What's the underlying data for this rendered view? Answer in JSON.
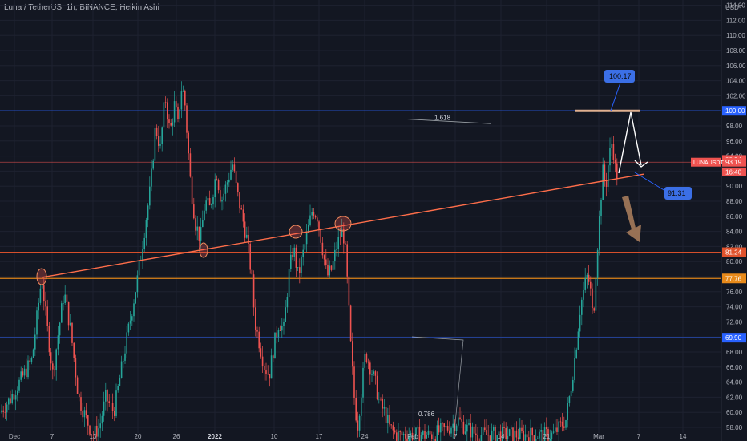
{
  "header": {
    "title": "Luna / TetherUS, 1h, BINANCE, Heikin Ashi",
    "currency": "USDT"
  },
  "chart_data": {
    "type": "candlestick",
    "ylim": [
      57,
      114
    ],
    "y_ticks": [
      58,
      60,
      62,
      64,
      66,
      68,
      70,
      72,
      74,
      76,
      78,
      80,
      82,
      84,
      86,
      88,
      90,
      92,
      94,
      96,
      98,
      100,
      102,
      104,
      106,
      108,
      110,
      112,
      114
    ],
    "x_ticks": [
      "Dec",
      "7",
      "13",
      "20",
      "26",
      "2022",
      "10",
      "17",
      "24",
      "Feb",
      "7",
      "14",
      "21",
      "Mar",
      "7",
      "14"
    ],
    "grid": true,
    "colors": {
      "up": "#26a69a",
      "down": "#ef5350",
      "background": "#131722"
    },
    "horizontal_levels": [
      {
        "label": "100.00",
        "value": 100.0,
        "color": "#2962ff"
      },
      {
        "label": "81.24",
        "value": 81.24,
        "color": "#e0522c"
      },
      {
        "label": "77.76",
        "value": 77.76,
        "color": "#e88a1a"
      },
      {
        "label": "69.90",
        "value": 69.9,
        "color": "#2962ff"
      },
      {
        "label": "",
        "value": 93.19,
        "color": "#ef5350"
      }
    ],
    "price_tags": [
      {
        "label": "93.54",
        "value": 93.54
      },
      {
        "label": "93.19",
        "value": 93.19
      },
      {
        "label": "16:40",
        "value": 91.9
      }
    ],
    "symbol_label": "LUNAUSDT",
    "callouts": [
      "100.17",
      "91.31"
    ],
    "fib_labels": [
      "1.618",
      "0.786"
    ],
    "trendline": {
      "from_value": 77.9,
      "to_value": 91.6
    },
    "candle_path": [
      [
        0,
        60
      ],
      [
        14,
        62
      ],
      [
        40,
        67
      ],
      [
        52,
        78
      ],
      [
        58,
        72
      ],
      [
        66,
        65
      ],
      [
        72,
        70
      ],
      [
        80,
        76
      ],
      [
        88,
        71
      ],
      [
        98,
        62
      ],
      [
        108,
        59
      ],
      [
        116,
        57
      ],
      [
        124,
        58
      ],
      [
        132,
        62
      ],
      [
        142,
        60
      ],
      [
        152,
        66
      ],
      [
        162,
        72
      ],
      [
        172,
        78
      ],
      [
        180,
        84
      ],
      [
        188,
        90
      ],
      [
        194,
        98
      ],
      [
        200,
        95
      ],
      [
        206,
        102
      ],
      [
        212,
        97
      ],
      [
        218,
        101
      ],
      [
        222,
        98
      ],
      [
        226,
        103
      ],
      [
        230,
        102
      ],
      [
        234,
        96
      ],
      [
        238,
        90
      ],
      [
        244,
        85
      ],
      [
        250,
        83
      ],
      [
        256,
        88
      ],
      [
        262,
        87
      ],
      [
        270,
        92
      ],
      [
        276,
        88
      ],
      [
        282,
        90
      ],
      [
        290,
        93
      ],
      [
        296,
        89
      ],
      [
        302,
        86
      ],
      [
        308,
        83
      ],
      [
        314,
        78
      ],
      [
        318,
        72
      ],
      [
        324,
        69
      ],
      [
        330,
        66
      ],
      [
        336,
        65
      ],
      [
        342,
        69
      ],
      [
        348,
        72
      ],
      [
        354,
        71
      ],
      [
        360,
        78
      ],
      [
        366,
        82
      ],
      [
        372,
        78
      ],
      [
        378,
        81
      ],
      [
        384,
        84
      ],
      [
        390,
        87
      ],
      [
        396,
        86
      ],
      [
        402,
        82
      ],
      [
        408,
        78
      ],
      [
        414,
        79
      ],
      [
        420,
        82
      ],
      [
        426,
        84
      ],
      [
        430,
        83
      ],
      [
        434,
        76
      ],
      [
        438,
        68
      ],
      [
        442,
        62
      ],
      [
        446,
        58
      ],
      [
        450,
        62
      ],
      [
        456,
        68
      ],
      [
        462,
        66
      ],
      [
        468,
        64
      ],
      [
        474,
        61
      ],
      [
        480,
        60
      ],
      [
        486,
        58
      ],
      [
        494,
        57
      ],
      [
        506,
        57
      ],
      [
        520,
        57
      ],
      [
        540,
        57
      ],
      [
        560,
        58
      ],
      [
        572,
        59
      ],
      [
        580,
        58
      ],
      [
        596,
        57
      ],
      [
        624,
        57
      ],
      [
        656,
        57
      ],
      [
        690,
        57
      ],
      [
        706,
        59
      ],
      [
        712,
        63
      ],
      [
        718,
        68
      ],
      [
        724,
        74
      ],
      [
        728,
        76
      ],
      [
        732,
        78
      ],
      [
        736,
        77
      ],
      [
        740,
        72
      ],
      [
        744,
        80
      ],
      [
        748,
        86
      ],
      [
        752,
        92
      ],
      [
        756,
        90
      ],
      [
        760,
        94
      ],
      [
        764,
        96
      ],
      [
        768,
        92
      ],
      [
        772,
        91
      ]
    ]
  }
}
